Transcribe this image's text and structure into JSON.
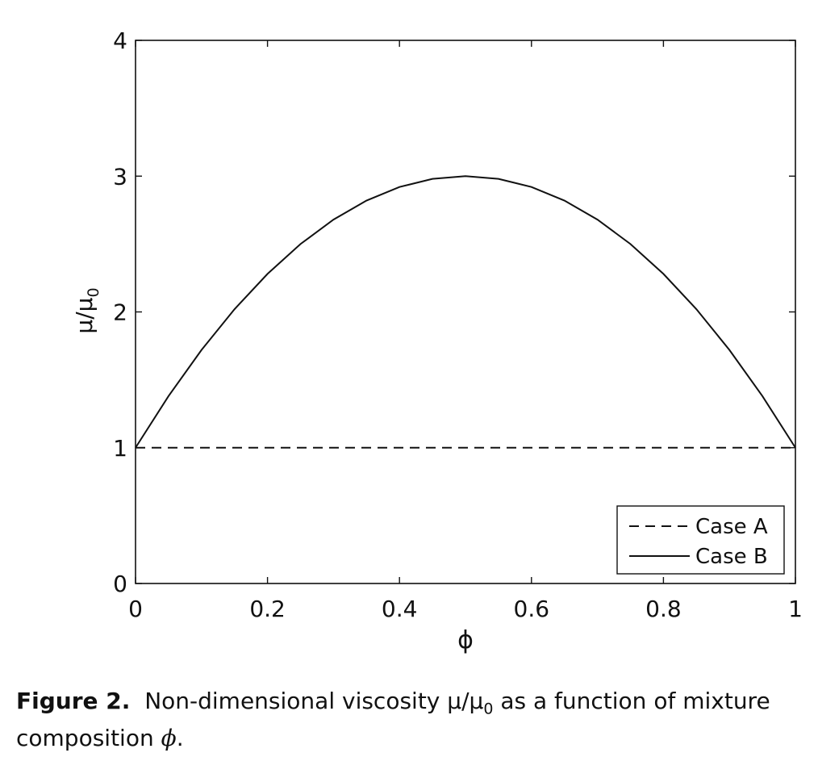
{
  "chart_data": {
    "type": "line",
    "xlabel": "ϕ",
    "ylabel": "μ/μ",
    "ylabel_sub": "0",
    "xlim": [
      0,
      1
    ],
    "ylim": [
      0,
      4
    ],
    "xticks": [
      "0",
      "0.2",
      "0.4",
      "0.6",
      "0.8",
      "1"
    ],
    "yticks": [
      "0",
      "1",
      "2",
      "3",
      "4"
    ],
    "grid": false,
    "legend_position": "bottom-right",
    "x": [
      0,
      0.05,
      0.1,
      0.15,
      0.2,
      0.25,
      0.3,
      0.35,
      0.4,
      0.45,
      0.5,
      0.55,
      0.6,
      0.65,
      0.7,
      0.75,
      0.8,
      0.85,
      0.9,
      0.95,
      1
    ],
    "series": [
      {
        "name": "Case A",
        "style": "dashed",
        "color": "#111111",
        "values": [
          1,
          1,
          1,
          1,
          1,
          1,
          1,
          1,
          1,
          1,
          1,
          1,
          1,
          1,
          1,
          1,
          1,
          1,
          1,
          1,
          1
        ]
      },
      {
        "name": "Case B",
        "style": "solid",
        "color": "#111111",
        "values": [
          1,
          1.38,
          1.72,
          2.02,
          2.28,
          2.5,
          2.68,
          2.82,
          2.92,
          2.98,
          3,
          2.98,
          2.92,
          2.82,
          2.68,
          2.5,
          2.28,
          2.02,
          1.72,
          1.38,
          1
        ]
      }
    ]
  },
  "caption": {
    "label": "Figure 2.",
    "text_before": "Non-dimensional viscosity ",
    "mu_ratio": "μ/μ",
    "mu_sub": "0",
    "text_middle": " as a function of mixture composition ",
    "phi": "ϕ",
    "text_end": "."
  }
}
